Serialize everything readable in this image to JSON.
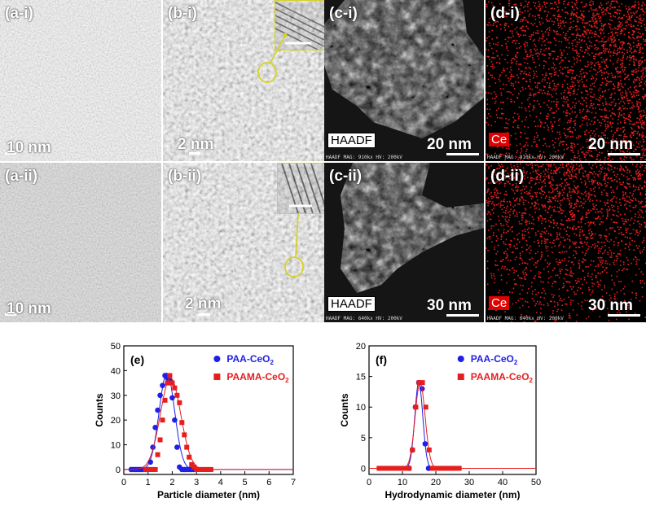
{
  "panels": {
    "a_i": {
      "label": "(a-i)",
      "scale": "10 nm"
    },
    "b_i": {
      "label": "(b-i)",
      "scale": "2 nm"
    },
    "c_i": {
      "label": "(c-i)",
      "scale": "20 nm",
      "tag": "HAADF",
      "meta": "HAADF   MAG: 910kx   HV: 200kV"
    },
    "d_i": {
      "label": "(d-i)",
      "scale": "20 nm",
      "tag": "Ce",
      "meta": "HAADF   MAG: 910kx   HV: 200kV"
    },
    "a_ii": {
      "label": "(a-ii)",
      "scale": "10 nm"
    },
    "b_ii": {
      "label": "(b-ii)",
      "scale": "2 nm"
    },
    "c_ii": {
      "label": "(c-ii)",
      "scale": "30 nm",
      "tag": "HAADF",
      "meta": "HAADF   MAG: 640kx   HV: 200kV"
    },
    "d_ii": {
      "label": "(d-ii)",
      "scale": "30 nm",
      "tag": "Ce",
      "meta": "HAADF   MAG: 640kx   HV: 200kV"
    }
  },
  "colors": {
    "blue": "#1f1fe6",
    "red": "#e61e1e",
    "yellow": "#d7d12a"
  },
  "chart_data": [
    {
      "type": "scatter",
      "panel_label": "(e)",
      "xlabel": "Particle diameter (nm)",
      "ylabel": "Counts",
      "xlim": [
        0,
        7
      ],
      "ylim": [
        -2,
        50
      ],
      "xticks": [
        0,
        1,
        2,
        3,
        4,
        5,
        6,
        7
      ],
      "yticks": [
        0,
        10,
        20,
        30,
        40,
        50
      ],
      "legend": "top-right",
      "series": [
        {
          "name": "PAA-CeO",
          "sub": "2",
          "color": "#1f1fe6",
          "marker": "circle",
          "x": [
            0.3,
            0.4,
            0.5,
            0.6,
            0.7,
            0.8,
            0.9,
            1.0,
            1.1,
            1.2,
            1.3,
            1.4,
            1.5,
            1.6,
            1.7,
            1.8,
            1.9,
            2.0,
            2.1,
            2.2,
            2.3,
            2.4,
            2.5,
            2.6,
            2.7,
            2.8,
            2.9
          ],
          "y": [
            0,
            0,
            0,
            0,
            0,
            0,
            0,
            0,
            3,
            9,
            17,
            24,
            30,
            34,
            38,
            37,
            36,
            29,
            20,
            9,
            1,
            0,
            0,
            0,
            0,
            0,
            0
          ],
          "fit": {
            "mu": 1.78,
            "sigma": 0.32,
            "amp": 39
          }
        },
        {
          "name": "PAAMA-CeO",
          "sub": "2",
          "color": "#e61e1e",
          "marker": "square",
          "x": [
            0.9,
            1.0,
            1.1,
            1.2,
            1.3,
            1.4,
            1.5,
            1.6,
            1.7,
            1.8,
            1.9,
            2.0,
            2.1,
            2.2,
            2.3,
            2.4,
            2.5,
            2.6,
            2.7,
            2.8,
            2.9,
            3.0,
            3.1,
            3.2,
            3.3,
            3.4,
            3.5,
            3.6
          ],
          "y": [
            0,
            0,
            0,
            0,
            0,
            6,
            12,
            20,
            28,
            35,
            38,
            35,
            33,
            30,
            27,
            19,
            14,
            9,
            5,
            2,
            1,
            0,
            0,
            0,
            0,
            0,
            0,
            0
          ],
          "fit": {
            "mu": 1.93,
            "sigma": 0.42,
            "amp": 37
          }
        }
      ]
    },
    {
      "type": "scatter",
      "panel_label": "(f)",
      "xlabel": "Hydrodynamic diameter (nm)",
      "ylabel": "Counts",
      "xlim": [
        0,
        50
      ],
      "ylim": [
        -1,
        20
      ],
      "xticks": [
        0,
        10,
        20,
        30,
        40,
        50
      ],
      "yticks": [
        0,
        5,
        10,
        15,
        20
      ],
      "legend": "top-right",
      "series": [
        {
          "name": "PAA-CeO",
          "sub": "2",
          "color": "#1f1fe6",
          "marker": "circle",
          "x": [
            12.0,
            13.0,
            13.9,
            14.9,
            15.9,
            16.8,
            17.8
          ],
          "y": [
            0,
            3,
            10,
            14,
            13,
            4,
            0
          ],
          "fit": {
            "mu": 14.9,
            "sigma": 1.2,
            "amp": 14
          }
        },
        {
          "name": "PAAMA-CeO",
          "sub": "2",
          "color": "#e61e1e",
          "marker": "square",
          "x": [
            3.0,
            4.0,
            5.0,
            6.0,
            7.0,
            8.0,
            9.0,
            10.0,
            11.0,
            12.0,
            13.0,
            14.0,
            15.0,
            16.0,
            17.0,
            18.0,
            19.0,
            20.0,
            21.0,
            22.0,
            23.0,
            24.0,
            25.0,
            26.0,
            27.0
          ],
          "y": [
            0,
            0,
            0,
            0,
            0,
            0,
            0,
            0,
            0,
            0,
            3,
            10,
            14,
            14,
            10,
            3,
            0,
            0,
            0,
            0,
            0,
            0,
            0,
            0,
            0
          ],
          "fit": {
            "mu": 15.3,
            "sigma": 1.5,
            "amp": 14
          }
        }
      ]
    }
  ]
}
